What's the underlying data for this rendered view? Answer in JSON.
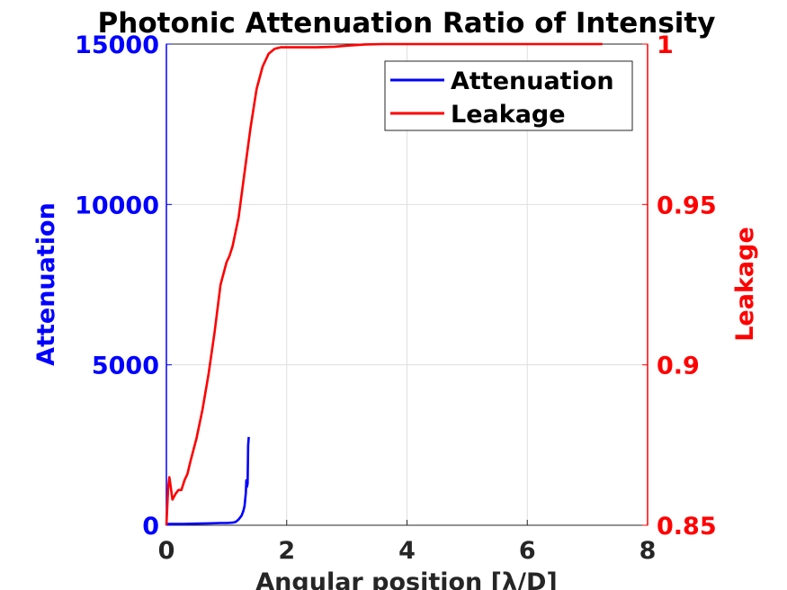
{
  "chart_data": {
    "type": "line",
    "title": "Photonic Attenuation Ratio of Intensity",
    "xlabel": "Angular position [λ/D]",
    "xlim": [
      0,
      8
    ],
    "xticks": [
      "0",
      "2",
      "4",
      "6",
      "8"
    ],
    "y_left": {
      "label": "Attenuation",
      "lim": [
        0,
        15000
      ],
      "ticks": [
        "0",
        "5000",
        "10000",
        "15000"
      ],
      "color": "#0000ff"
    },
    "y_right": {
      "label": "Leakage",
      "lim": [
        0.85,
        1
      ],
      "ticks": [
        "0.85",
        "0.9",
        "0.95",
        "1"
      ],
      "color": "#ff0000"
    },
    "grid": true,
    "legend": {
      "position": "top-right",
      "entries": [
        "Attenuation",
        "Leakage"
      ]
    },
    "series": [
      {
        "name": "Attenuation",
        "axis": "left",
        "color": "#0000ff",
        "x": [
          0.0,
          0.1,
          0.3,
          0.5,
          0.7,
          0.9,
          1.0,
          1.1,
          1.15,
          1.2,
          1.25,
          1.28,
          1.3,
          1.32,
          1.33,
          1.34,
          1.35,
          1.36,
          1.37
        ],
        "y": [
          40,
          40,
          40,
          50,
          60,
          70,
          70,
          80,
          100,
          180,
          300,
          450,
          600,
          1000,
          1400,
          1200,
          1300,
          2500,
          2750
        ]
      },
      {
        "name": "Leakage",
        "axis": "right",
        "color": "#ff0000",
        "x": [
          0.0,
          0.03,
          0.05,
          0.08,
          0.1,
          0.13,
          0.16,
          0.2,
          0.25,
          0.3,
          0.35,
          0.4,
          0.5,
          0.6,
          0.7,
          0.8,
          0.9,
          1.0,
          1.05,
          1.1,
          1.2,
          1.3,
          1.4,
          1.5,
          1.6,
          1.7,
          1.8,
          1.9,
          2.0,
          2.2,
          2.5,
          2.8,
          3.0,
          3.3,
          3.6,
          4.0,
          5.0,
          6.0,
          7.0,
          7.25
        ],
        "y": [
          0.85,
          0.862,
          0.865,
          0.861,
          0.858,
          0.859,
          0.86,
          0.861,
          0.861,
          0.864,
          0.866,
          0.87,
          0.877,
          0.886,
          0.897,
          0.91,
          0.925,
          0.932,
          0.934,
          0.937,
          0.946,
          0.96,
          0.974,
          0.986,
          0.993,
          0.997,
          0.9985,
          0.999,
          0.999,
          0.999,
          0.999,
          0.9992,
          0.9995,
          0.9999,
          1.0,
          1.0,
          1.0,
          1.0,
          1.0,
          1.0
        ]
      }
    ]
  }
}
